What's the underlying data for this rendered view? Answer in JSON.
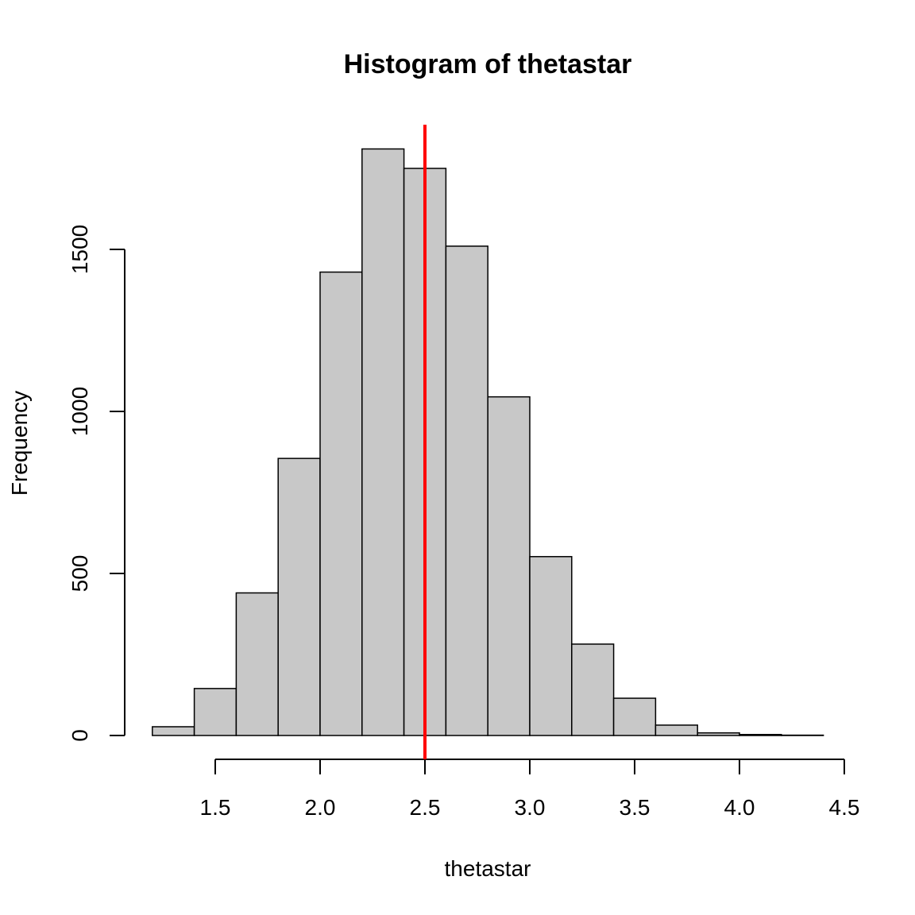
{
  "chart_data": {
    "type": "bar",
    "title": "Histogram of thetastar",
    "xlabel": "thetastar",
    "ylabel": "Frequency",
    "bin_edges": [
      1.2,
      1.4,
      1.6,
      1.8,
      2.0,
      2.2,
      2.4,
      2.6,
      2.8,
      3.0,
      3.2,
      3.4,
      3.6,
      3.8,
      4.0,
      4.2,
      4.4
    ],
    "values": [
      27,
      145,
      440,
      855,
      1430,
      1810,
      1750,
      1510,
      1045,
      552,
      282,
      115,
      32,
      8,
      3,
      1
    ],
    "xlim": [
      1.2,
      4.4
    ],
    "ylim": [
      0,
      1880
    ],
    "x_ticks": [
      1.5,
      2.0,
      2.5,
      3.0,
      3.5,
      4.0,
      4.5
    ],
    "x_tick_labels": [
      "1.5",
      "2.0",
      "2.5",
      "3.0",
      "3.5",
      "4.0",
      "4.5"
    ],
    "y_ticks": [
      0,
      500,
      1000,
      1500
    ],
    "y_tick_labels": [
      "0",
      "500",
      "1000",
      "1500"
    ],
    "vline": {
      "x": 2.5,
      "color": "#ff0000"
    },
    "bar_color": "#c8c8c8",
    "grid": false,
    "legend": false
  }
}
